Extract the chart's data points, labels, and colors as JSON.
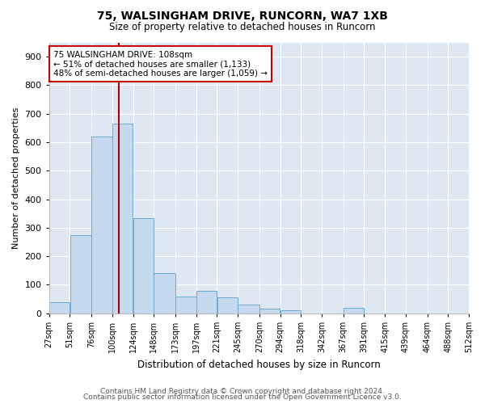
{
  "title1": "75, WALSINGHAM DRIVE, RUNCORN, WA7 1XB",
  "title2": "Size of property relative to detached houses in Runcorn",
  "xlabel": "Distribution of detached houses by size in Runcorn",
  "ylabel": "Number of detached properties",
  "bar_color": "#c5d9ef",
  "bar_edge_color": "#6fa8d0",
  "plot_bg_color": "#dde8f3",
  "annotation_line_color": "#aa0000",
  "annotation_box_edge_color": "#cc0000",
  "annotation_text_line1": "75 WALSINGHAM DRIVE: 108sqm",
  "annotation_text_line2": "← 51% of detached houses are smaller (1,133)",
  "annotation_text_line3": "48% of semi-detached houses are larger (1,059) →",
  "property_size": 108,
  "bin_edges": [
    27,
    51,
    76,
    100,
    124,
    148,
    173,
    197,
    221,
    245,
    270,
    294,
    318,
    342,
    367,
    391,
    415,
    439,
    464,
    488,
    512
  ],
  "bin_labels": [
    "27sqm",
    "51sqm",
    "76sqm",
    "100sqm",
    "124sqm",
    "148sqm",
    "173sqm",
    "197sqm",
    "221sqm",
    "245sqm",
    "270sqm",
    "294sqm",
    "318sqm",
    "342sqm",
    "367sqm",
    "391sqm",
    "415sqm",
    "439sqm",
    "464sqm",
    "488sqm",
    "512sqm"
  ],
  "bar_heights": [
    40,
    275,
    620,
    665,
    335,
    140,
    60,
    80,
    55,
    30,
    15,
    10,
    0,
    0,
    20,
    0,
    0,
    0,
    0,
    0
  ],
  "ylim": [
    0,
    950
  ],
  "yticks": [
    0,
    100,
    200,
    300,
    400,
    500,
    600,
    700,
    800,
    900
  ],
  "footer1": "Contains HM Land Registry data © Crown copyright and database right 2024.",
  "footer2": "Contains public sector information licensed under the Open Government Licence v3.0."
}
